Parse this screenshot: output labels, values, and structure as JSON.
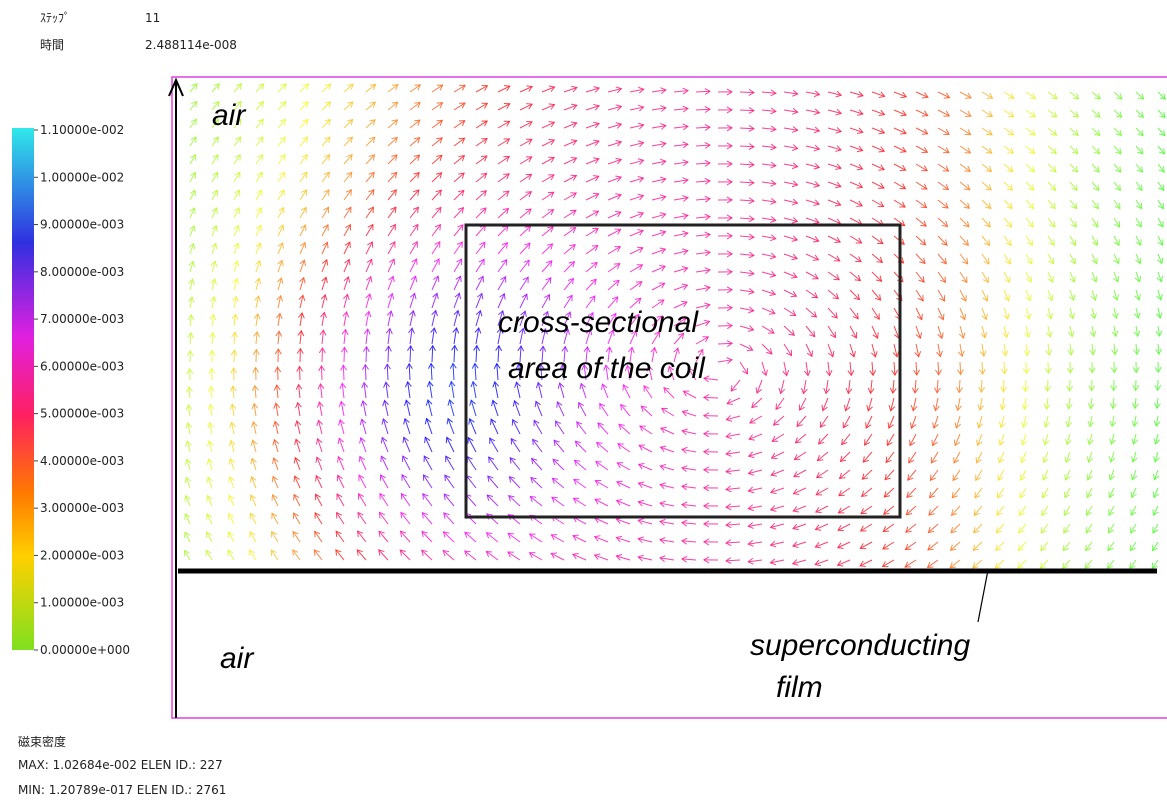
{
  "header": {
    "step_label": "ｽﾃｯﾌﾟ",
    "step_value": "11",
    "time_label": "時間",
    "time_value": "2.488114e-008"
  },
  "colorbar": {
    "lim": [
      0,
      0.011
    ],
    "ticks": [
      {
        "value": 0.011,
        "label": "1.10000e-002"
      },
      {
        "value": 0.01,
        "label": "1.00000e-002"
      },
      {
        "value": 0.009,
        "label": "9.00000e-003"
      },
      {
        "value": 0.008,
        "label": "8.00000e-003"
      },
      {
        "value": 0.007,
        "label": "7.00000e-003"
      },
      {
        "value": 0.006,
        "label": "6.00000e-003"
      },
      {
        "value": 0.005,
        "label": "5.00000e-003"
      },
      {
        "value": 0.004,
        "label": "4.00000e-003"
      },
      {
        "value": 0.003,
        "label": "3.00000e-003"
      },
      {
        "value": 0.002,
        "label": "2.00000e-003"
      },
      {
        "value": 0.001,
        "label": "1.00000e-003"
      },
      {
        "value": 0,
        "label": "0.00000e+000"
      }
    ]
  },
  "annotations": {
    "air_top": "air",
    "air_bottom": "air",
    "coil_line1": "cross-sectional",
    "coil_line2": "area of the coil",
    "film_line1": "superconducting",
    "film_line2": "film"
  },
  "footer": {
    "quantity": "磁束密度",
    "max": "MAX: 1.02684e-002 ELEN ID.: 227",
    "min": "MIN: 1.20789e-017 ELEN ID.: 2761"
  }
}
